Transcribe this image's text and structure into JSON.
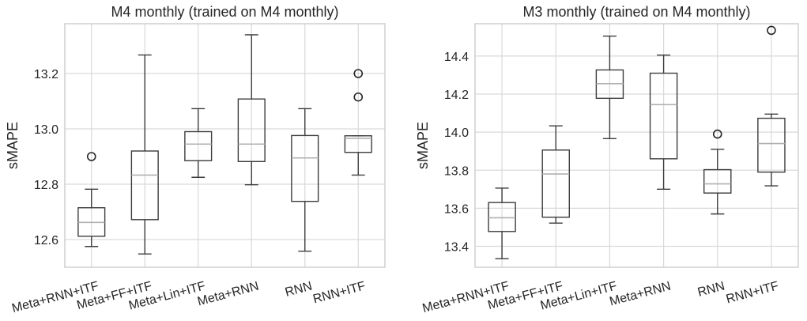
{
  "chart_data": [
    {
      "type": "box",
      "title": "M4 monthly (trained on M4 monthly)",
      "xlabel": "",
      "ylabel": "sMAPE",
      "ylim": [
        12.5,
        13.38
      ],
      "yticks": [
        12.6,
        12.8,
        13.0,
        13.2
      ],
      "grid": true,
      "categories": [
        "Meta+RNN+ITF",
        "Meta+FF+ITF",
        "Meta+Lin+ITF",
        "Meta+RNN",
        "RNN",
        "RNN+ITF"
      ],
      "boxes": [
        {
          "min": 12.575,
          "q1": 12.612,
          "median": 12.662,
          "q3": 12.715,
          "max": 12.782,
          "outliers": [
            12.9
          ]
        },
        {
          "min": 12.548,
          "q1": 12.672,
          "median": 12.833,
          "q3": 12.92,
          "max": 13.267,
          "outliers": []
        },
        {
          "min": 12.825,
          "q1": 12.885,
          "median": 12.945,
          "q3": 12.99,
          "max": 13.073,
          "outliers": []
        },
        {
          "min": 12.798,
          "q1": 12.882,
          "median": 12.945,
          "q3": 13.108,
          "max": 13.34,
          "outliers": []
        },
        {
          "min": 12.558,
          "q1": 12.738,
          "median": 12.895,
          "q3": 12.976,
          "max": 13.073,
          "outliers": []
        },
        {
          "min": 12.833,
          "q1": 12.915,
          "median": 12.966,
          "q3": 12.975,
          "max": 12.975,
          "outliers": [
            13.2,
            13.115
          ]
        }
      ]
    },
    {
      "type": "box",
      "title": "M3 monthly (trained on M4 monthly)",
      "xlabel": "",
      "ylabel": "sMAPE",
      "ylim": [
        13.29,
        14.57
      ],
      "yticks": [
        13.4,
        13.6,
        13.8,
        14.0,
        14.2,
        14.4
      ],
      "grid": true,
      "categories": [
        "Meta+RNN+ITF",
        "Meta+FF+ITF",
        "Meta+Lin+ITF",
        "Meta+RNN",
        "RNN",
        "RNN+ITF"
      ],
      "boxes": [
        {
          "min": 13.335,
          "q1": 13.478,
          "median": 13.55,
          "q3": 13.63,
          "max": 13.706,
          "outliers": []
        },
        {
          "min": 13.522,
          "q1": 13.553,
          "median": 13.78,
          "q3": 13.906,
          "max": 14.033,
          "outliers": []
        },
        {
          "min": 13.966,
          "q1": 14.178,
          "median": 14.255,
          "q3": 14.327,
          "max": 14.505,
          "outliers": []
        },
        {
          "min": 13.7,
          "q1": 13.86,
          "median": 14.145,
          "q3": 14.31,
          "max": 14.405,
          "outliers": []
        },
        {
          "min": 13.57,
          "q1": 13.68,
          "median": 13.728,
          "q3": 13.803,
          "max": 13.91,
          "outliers": [
            13.99
          ]
        },
        {
          "min": 13.718,
          "q1": 13.79,
          "median": 13.94,
          "q3": 14.073,
          "max": 14.095,
          "outliers": [
            14.535
          ]
        }
      ]
    }
  ]
}
